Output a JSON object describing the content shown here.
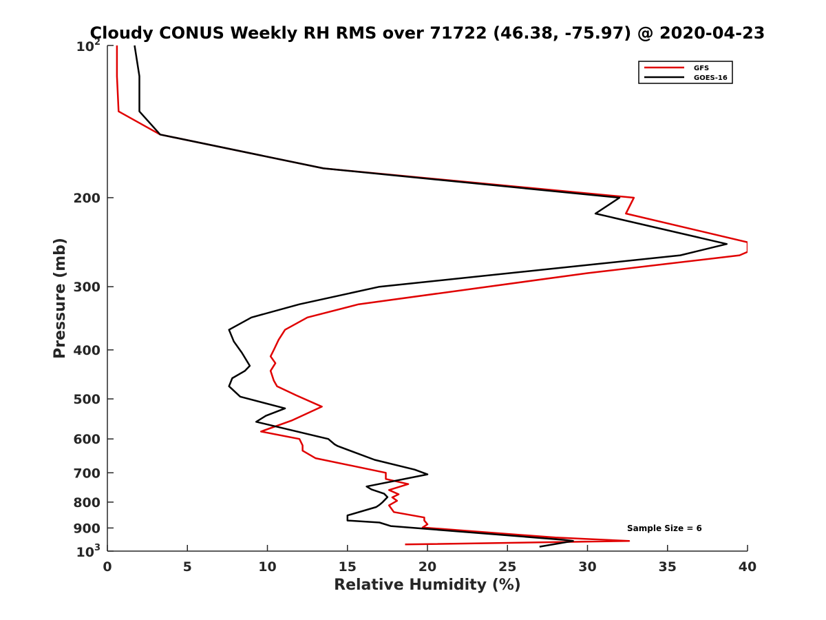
{
  "chart_data": {
    "type": "line",
    "title": "Cloudy CONUS Weekly RH RMS over 71722 (46.38, -75.97) @ 2020-04-23",
    "xlabel": "Relative Humidity (%)",
    "ylabel": "Pressure (mb)",
    "xlim": [
      0,
      40
    ],
    "ylim": [
      100,
      1000
    ],
    "yscale": "log",
    "yreversed": false,
    "x_ticks": [
      0,
      5,
      10,
      15,
      20,
      25,
      30,
      35,
      40
    ],
    "x_tick_labels": [
      "0",
      "5",
      "10",
      "15",
      "20",
      "25",
      "30",
      "35",
      "40"
    ],
    "y_ticks": [
      200,
      300,
      400,
      500,
      600,
      700,
      800,
      900
    ],
    "y_tick_labels": [
      "200",
      "300",
      "400",
      "500",
      "600",
      "700",
      "800",
      "900"
    ],
    "y_end_labels": [
      {
        "value": 100,
        "base": "10",
        "exp": "2"
      },
      {
        "value": 1000,
        "base": "10",
        "exp": "3"
      }
    ],
    "legend_position": "top-right",
    "annotation": "Sample Size = 6",
    "series": [
      {
        "name": "GFS",
        "color": "#e00000",
        "points": [
          [
            0.6,
            100
          ],
          [
            0.6,
            115
          ],
          [
            0.7,
            135
          ],
          [
            3.3,
            150
          ],
          [
            13.5,
            175
          ],
          [
            32.9,
            200
          ],
          [
            32.4,
            215
          ],
          [
            40.0,
            245
          ],
          [
            40.0,
            256
          ],
          [
            39.5,
            260
          ],
          [
            30.0,
            282
          ],
          [
            15.7,
            325
          ],
          [
            12.5,
            345
          ],
          [
            11.1,
            365
          ],
          [
            10.7,
            382
          ],
          [
            10.4,
            400
          ],
          [
            10.2,
            412
          ],
          [
            10.5,
            425
          ],
          [
            10.2,
            440
          ],
          [
            10.4,
            460
          ],
          [
            10.6,
            472
          ],
          [
            11.8,
            492
          ],
          [
            13.4,
            518
          ],
          [
            11.5,
            552
          ],
          [
            9.6,
            580
          ],
          [
            12.0,
            600
          ],
          [
            12.2,
            618
          ],
          [
            12.2,
            633
          ],
          [
            13.0,
            655
          ],
          [
            17.4,
            700
          ],
          [
            17.4,
            720
          ],
          [
            18.8,
            737
          ],
          [
            17.6,
            757
          ],
          [
            18.2,
            772
          ],
          [
            17.8,
            783
          ],
          [
            18.1,
            795
          ],
          [
            17.6,
            812
          ],
          [
            17.9,
            837
          ],
          [
            19.8,
            858
          ],
          [
            19.8,
            870
          ],
          [
            20.0,
            885
          ],
          [
            19.7,
            898
          ],
          [
            28.0,
            940
          ],
          [
            32.6,
            955
          ],
          [
            18.6,
            970
          ]
        ]
      },
      {
        "name": "GOES-16",
        "color": "#000000",
        "points": [
          [
            1.7,
            100
          ],
          [
            2.0,
            115
          ],
          [
            2.0,
            135
          ],
          [
            3.3,
            150
          ],
          [
            13.5,
            175
          ],
          [
            32.0,
            200
          ],
          [
            30.5,
            215
          ],
          [
            38.7,
            247
          ],
          [
            35.8,
            260
          ],
          [
            17.0,
            300
          ],
          [
            12.0,
            325
          ],
          [
            9.0,
            345
          ],
          [
            7.6,
            365
          ],
          [
            7.9,
            385
          ],
          [
            8.4,
            405
          ],
          [
            8.9,
            430
          ],
          [
            8.6,
            440
          ],
          [
            7.8,
            455
          ],
          [
            7.6,
            472
          ],
          [
            8.3,
            495
          ],
          [
            11.1,
            522
          ],
          [
            9.9,
            540
          ],
          [
            9.3,
            555
          ],
          [
            13.8,
            600
          ],
          [
            14.2,
            615
          ],
          [
            14.4,
            620
          ],
          [
            16.7,
            660
          ],
          [
            19.2,
            690
          ],
          [
            20.0,
            705
          ],
          [
            16.2,
            745
          ],
          [
            16.5,
            755
          ],
          [
            17.3,
            770
          ],
          [
            17.5,
            782
          ],
          [
            17.2,
            800
          ],
          [
            17.0,
            810
          ],
          [
            16.8,
            818
          ],
          [
            15.0,
            850
          ],
          [
            15.0,
            870
          ],
          [
            17.0,
            878
          ],
          [
            17.7,
            892
          ],
          [
            28.5,
            950
          ],
          [
            29.1,
            955
          ],
          [
            27.0,
            980
          ]
        ]
      }
    ]
  }
}
